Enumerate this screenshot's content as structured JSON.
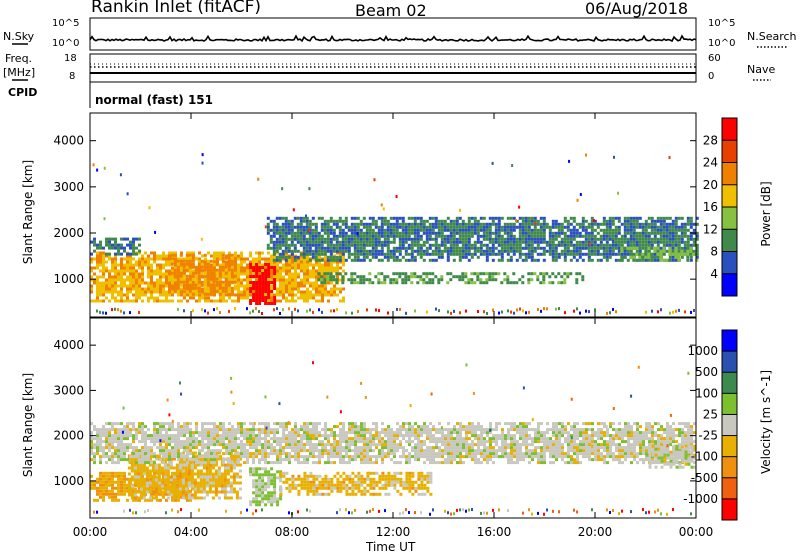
{
  "header": {
    "station": "Rankin Inlet (fitACF)",
    "beam": "Beam 02",
    "date": "06/Aug/2018"
  },
  "strip_nsky": {
    "left_label": "N.Sky",
    "right_label": "N.Search",
    "left_ticks": [
      "10^5",
      "10^0"
    ],
    "right_ticks": [
      "10^5",
      "10^0"
    ]
  },
  "strip_freq": {
    "left_label_1": "Freq.",
    "left_label_2": "[MHz]",
    "right_label": "Nave",
    "left_ticks": [
      "18",
      "8"
    ],
    "right_ticks": [
      "60",
      "0"
    ]
  },
  "cpid": {
    "label": "CPID",
    "value": "normal (fast) 151"
  },
  "colors": {
    "power_scale": [
      "#0000ff",
      "#2a50c0",
      "#3f8a4a",
      "#86c240",
      "#f0c000",
      "#f08000",
      "#e84000",
      "#ff0000"
    ],
    "velocity_scale": [
      "#ff0000",
      "#f06010",
      "#f09010",
      "#e8b000",
      "#c8c8c0",
      "#7cc030",
      "#3c8a50",
      "#2a50b0",
      "#0000ff"
    ]
  },
  "chart_data": [
    {
      "type": "heatmap",
      "title": "",
      "xlabel": "",
      "ylabel": "Slant Range [km]",
      "x_ticks": [
        "00:00",
        "04:00",
        "08:00",
        "12:00",
        "16:00",
        "20:00",
        "00:00"
      ],
      "y_ticks": [
        "4000",
        "3000",
        "2000",
        "1000"
      ],
      "xlim": [
        0,
        24
      ],
      "ylim": [
        180,
        4600
      ],
      "colorbar": {
        "label": "Power [dB]",
        "ticks": [
          "28",
          "24",
          "20",
          "16",
          "12",
          "8",
          "4"
        ],
        "range": [
          0,
          30
        ]
      },
      "regions": [
        {
          "t_start": 0.0,
          "t_end": 10.0,
          "range_low": 550,
          "range_high": 1600,
          "value": 18
        },
        {
          "t_start": 3.2,
          "t_end": 5.8,
          "range_low": 650,
          "range_high": 1550,
          "value": 20
        },
        {
          "t_start": 6.3,
          "t_end": 7.3,
          "range_low": 500,
          "range_high": 1350,
          "value": 30
        },
        {
          "t_start": 0.0,
          "t_end": 2.0,
          "range_low": 1550,
          "range_high": 1900,
          "value": 8
        },
        {
          "t_start": 7.0,
          "t_end": 24.0,
          "range_low": 1400,
          "range_high": 2350,
          "value": 8
        },
        {
          "t_start": 9.0,
          "t_end": 19.5,
          "range_low": 900,
          "range_high": 1150,
          "value": 10
        },
        {
          "t_start": 21.0,
          "t_end": 24.0,
          "range_low": 1400,
          "range_high": 1700,
          "value": 12
        }
      ]
    },
    {
      "type": "heatmap",
      "title": "",
      "xlabel": "Time UT",
      "ylabel": "Slant Range [km]",
      "x_ticks": [
        "00:00",
        "04:00",
        "08:00",
        "12:00",
        "16:00",
        "20:00",
        "00:00"
      ],
      "y_ticks": [
        "4000",
        "3000",
        "2000",
        "1000"
      ],
      "xlim": [
        0,
        24
      ],
      "ylim": [
        180,
        4600
      ],
      "colorbar": {
        "label": "Velocity [m s^-1]",
        "ticks": [
          "1000",
          "500",
          "100",
          "25",
          "-25",
          "-100",
          "-500",
          "-1000"
        ],
        "range": [
          -1000,
          1000
        ]
      },
      "regions": [
        {
          "t_start": 0.0,
          "t_end": 4.0,
          "range_low": 550,
          "range_high": 1200,
          "value": -300
        },
        {
          "t_start": 1.5,
          "t_end": 6.0,
          "range_low": 600,
          "range_high": 1650,
          "value": -200
        },
        {
          "t_start": 6.3,
          "t_end": 7.5,
          "range_low": 500,
          "range_high": 1300,
          "value": 150
        },
        {
          "t_start": 7.5,
          "t_end": 13.5,
          "range_low": 700,
          "range_high": 1200,
          "value": -200
        },
        {
          "t_start": 0.0,
          "t_end": 24.0,
          "range_low": 1400,
          "range_high": 2300,
          "value": 0
        },
        {
          "t_start": 22.0,
          "t_end": 24.0,
          "range_low": 1300,
          "range_high": 1800,
          "value": 0
        }
      ]
    }
  ]
}
